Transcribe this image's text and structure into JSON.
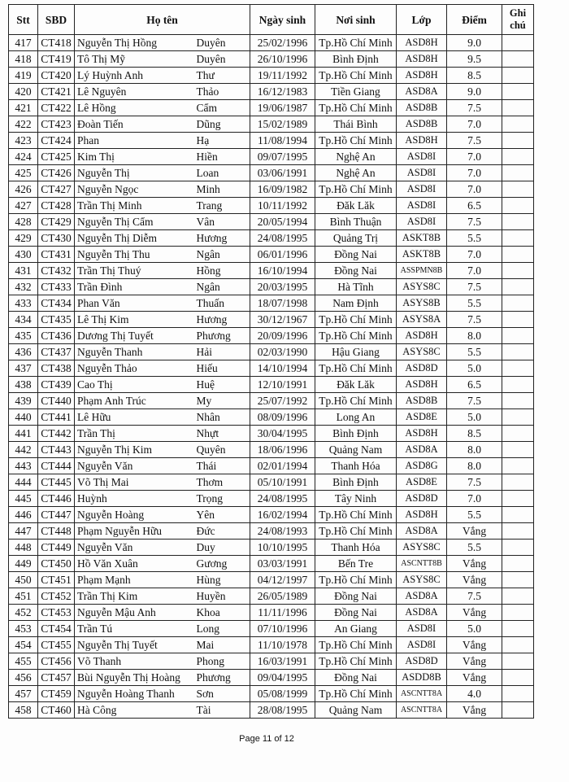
{
  "table": {
    "headers": [
      "Stt",
      "SBD",
      "Họ tên",
      "Ngày sinh",
      "Nơi sinh",
      "Lớp",
      "Điểm",
      "Ghi chú"
    ],
    "rows": [
      [
        "417",
        "CT418",
        "Nguyễn Thị Hồng",
        "Duyên",
        "25/02/1996",
        "Tp.Hồ Chí Minh",
        "ASD8H",
        "9.0"
      ],
      [
        "418",
        "CT419",
        "Tô Thị Mỹ",
        "Duyên",
        "26/10/1996",
        "Bình Định",
        "ASD8H",
        "9.5"
      ],
      [
        "419",
        "CT420",
        "Lý Huỳnh Anh",
        "Thư",
        "19/11/1992",
        "Tp.Hồ Chí Minh",
        "ASD8H",
        "8.5"
      ],
      [
        "420",
        "CT421",
        "Lê Nguyên",
        "Thảo",
        "16/12/1983",
        "Tiền Giang",
        "ASD8A",
        "9.0"
      ],
      [
        "421",
        "CT422",
        "Lê Hồng",
        "Cẩm",
        "19/06/1987",
        "Tp.Hồ Chí Minh",
        "ASD8B",
        "7.5"
      ],
      [
        "422",
        "CT423",
        "Đoàn Tiến",
        "Dũng",
        "15/02/1989",
        "Thái Bình",
        "ASD8B",
        "7.0"
      ],
      [
        "423",
        "CT424",
        "Phan",
        "Hạ",
        "11/08/1994",
        "Tp.Hồ Chí Minh",
        "ASD8H",
        "7.5"
      ],
      [
        "424",
        "CT425",
        "Kim Thị",
        "Hiền",
        "09/07/1995",
        "Nghệ An",
        "ASD8I",
        "7.0"
      ],
      [
        "425",
        "CT426",
        "Nguyễn Thị",
        "Loan",
        "03/06/1991",
        "Nghệ An",
        "ASD8I",
        "7.0"
      ],
      [
        "426",
        "CT427",
        "Nguyễn Ngọc",
        "Minh",
        "16/09/1982",
        "Tp.Hồ Chí Minh",
        "ASD8I",
        "7.0"
      ],
      [
        "427",
        "CT428",
        "Trần Thị Minh",
        "Trang",
        "10/11/1992",
        "Đăk Lăk",
        "ASD8I",
        "6.5"
      ],
      [
        "428",
        "CT429",
        "Nguyễn Thị Cẩm",
        "Vân",
        "20/05/1994",
        "Bình Thuận",
        "ASD8I",
        "7.5"
      ],
      [
        "429",
        "CT430",
        "Nguyễn Thị Diễm",
        "Hương",
        "24/08/1995",
        "Quảng Trị",
        "ASKT8B",
        "5.5"
      ],
      [
        "430",
        "CT431",
        "Nguyễn Thị Thu",
        "Ngân",
        "06/01/1996",
        "Đồng Nai",
        "ASKT8B",
        "7.0"
      ],
      [
        "431",
        "CT432",
        "Trần Thị Thuý",
        "Hồng",
        "16/10/1994",
        "Đồng Nai",
        "ASSPMN8B",
        "7.0"
      ],
      [
        "432",
        "CT433",
        "Trần Đình",
        "Ngân",
        "20/03/1995",
        "Hà Tĩnh",
        "ASYS8C",
        "7.5"
      ],
      [
        "433",
        "CT434",
        "Phan Văn",
        "Thuấn",
        "18/07/1998",
        "Nam Định",
        "ASYS8B",
        "5.5"
      ],
      [
        "434",
        "CT435",
        "Lê Thị Kim",
        "Hương",
        "30/12/1967",
        "Tp.Hồ Chí Minh",
        "ASYS8A",
        "7.5"
      ],
      [
        "435",
        "CT436",
        "Dương Thị Tuyết",
        "Phương",
        "20/09/1996",
        "Tp.Hồ Chí Minh",
        "ASD8H",
        "8.0"
      ],
      [
        "436",
        "CT437",
        "Nguyễn Thanh",
        "Hải",
        "02/03/1990",
        "Hậu Giang",
        "ASYS8C",
        "5.5"
      ],
      [
        "437",
        "CT438",
        "Nguyễn Thảo",
        "Hiếu",
        "14/10/1994",
        "Tp.Hồ Chí Minh",
        "ASD8D",
        "5.0"
      ],
      [
        "438",
        "CT439",
        "Cao Thị",
        "Huệ",
        "12/10/1991",
        "Đăk Lăk",
        "ASD8H",
        "6.5"
      ],
      [
        "439",
        "CT440",
        "Phạm Anh Trúc",
        "My",
        "25/07/1992",
        "Tp.Hồ Chí Minh",
        "ASD8B",
        "7.5"
      ],
      [
        "440",
        "CT441",
        "Lê Hữu",
        "Nhân",
        "08/09/1996",
        "Long An",
        "ASD8E",
        "5.0"
      ],
      [
        "441",
        "CT442",
        "Trần Thị",
        "Nhựt",
        "30/04/1995",
        "Bình Định",
        "ASD8H",
        "8.5"
      ],
      [
        "442",
        "CT443",
        "Nguyễn Thị Kim",
        "Quyên",
        "18/06/1996",
        "Quảng Nam",
        "ASD8A",
        "8.0"
      ],
      [
        "443",
        "CT444",
        "Nguyễn Văn",
        "Thái",
        "02/01/1994",
        "Thanh Hóa",
        "ASD8G",
        "8.0"
      ],
      [
        "444",
        "CT445",
        "Võ Thị Mai",
        "Thơm",
        "05/10/1991",
        "Bình Định",
        "ASD8E",
        "7.5"
      ],
      [
        "445",
        "CT446",
        "Huỳnh",
        "Trọng",
        "24/08/1995",
        "Tây Ninh",
        "ASD8D",
        "7.0"
      ],
      [
        "446",
        "CT447",
        "Nguyễn Hoàng",
        "Yên",
        "16/02/1994",
        "Tp.Hồ Chí Minh",
        "ASD8H",
        "5.5"
      ],
      [
        "447",
        "CT448",
        "Phạm Nguyễn Hữu",
        "Đức",
        "24/08/1993",
        "Tp.Hồ Chí Minh",
        "ASD8A",
        "Vắng"
      ],
      [
        "448",
        "CT449",
        "Nguyễn Văn",
        "Duy",
        "10/10/1995",
        "Thanh Hóa",
        "ASYS8C",
        "5.5"
      ],
      [
        "449",
        "CT450",
        "Hồ Văn Xuân",
        "Gương",
        "03/03/1991",
        "Bến Tre",
        "ASCNTT8B",
        "Vắng"
      ],
      [
        "450",
        "CT451",
        "Phạm Mạnh",
        "Hùng",
        "04/12/1997",
        "Tp.Hồ Chí Minh",
        "ASYS8C",
        "Vắng"
      ],
      [
        "451",
        "CT452",
        "Trần Thị Kim",
        "Huyền",
        "26/05/1989",
        "Đồng Nai",
        "ASD8A",
        "7.5"
      ],
      [
        "452",
        "CT453",
        "Nguyễn Mậu Anh",
        "Khoa",
        "11/11/1996",
        "Đồng Nai",
        "ASD8A",
        "Vắng"
      ],
      [
        "453",
        "CT454",
        "Trần Tú",
        "Long",
        "07/10/1996",
        "An Giang",
        "ASD8I",
        "5.0"
      ],
      [
        "454",
        "CT455",
        "Nguyễn Thị Tuyết",
        "Mai",
        "11/10/1978",
        "Tp.Hồ Chí Minh",
        "ASD8I",
        "Vắng"
      ],
      [
        "455",
        "CT456",
        "Võ Thanh",
        "Phong",
        "16/03/1991",
        "Tp.Hồ Chí Minh",
        "ASD8D",
        "Vắng"
      ],
      [
        "456",
        "CT457",
        "Bùi Nguyễn Thị Hoàng",
        "Phương",
        "09/04/1995",
        "Đồng Nai",
        "ASDD8B",
        "Vắng"
      ],
      [
        "457",
        "CT459",
        "Nguyễn Hoàng Thanh",
        "Sơn",
        "05/08/1999",
        "Tp.Hồ Chí Minh",
        "ASCNTT8A",
        "4.0"
      ],
      [
        "458",
        "CT460",
        "Hà Công",
        "Tài",
        "28/08/1995",
        "Quảng Nam",
        "ASCNTT8A",
        "Vắng"
      ]
    ]
  },
  "footer": {
    "page": "Page 11 of 12"
  }
}
